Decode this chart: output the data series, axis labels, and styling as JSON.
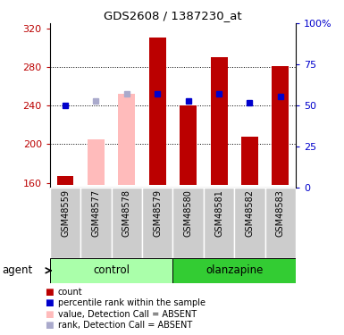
{
  "title": "GDS2608 / 1387230_at",
  "samples": [
    "GSM48559",
    "GSM48577",
    "GSM48578",
    "GSM48579",
    "GSM48580",
    "GSM48581",
    "GSM48582",
    "GSM48583"
  ],
  "red_bars": [
    167,
    null,
    null,
    310,
    240,
    290,
    208,
    281
  ],
  "pink_bars": [
    null,
    205,
    252,
    null,
    null,
    null,
    null,
    null
  ],
  "blue_squares": [
    240,
    null,
    null,
    252,
    245,
    252,
    243,
    249
  ],
  "lavender_squares": [
    null,
    245,
    252,
    null,
    null,
    null,
    null,
    null
  ],
  "ylim_left": [
    155,
    325
  ],
  "ylim_right": [
    0,
    100
  ],
  "yticks_left": [
    160,
    200,
    240,
    280,
    320
  ],
  "yticks_right": [
    0,
    25,
    50,
    75,
    100
  ],
  "ytick_labels_right": [
    "0",
    "25",
    "50",
    "75",
    "100%"
  ],
  "bar_bottom": 158,
  "bar_width": 0.55,
  "color_red": "#bb0000",
  "color_pink": "#ffbbbb",
  "color_blue": "#0000cc",
  "color_lavender": "#aaaacc",
  "color_control_light": "#aaffaa",
  "color_olanzapine_dark": "#33cc33",
  "color_sample_bg": "#cccccc",
  "group_label_control": "control",
  "group_label_olanzapine": "olanzapine",
  "agent_label": "agent",
  "legend_items": [
    {
      "label": "count",
      "color": "#bb0000"
    },
    {
      "label": "percentile rank within the sample",
      "color": "#0000cc"
    },
    {
      "label": "value, Detection Call = ABSENT",
      "color": "#ffbbbb"
    },
    {
      "label": "rank, Detection Call = ABSENT",
      "color": "#aaaacc"
    }
  ],
  "figsize": [
    3.85,
    3.75
  ],
  "dpi": 100
}
